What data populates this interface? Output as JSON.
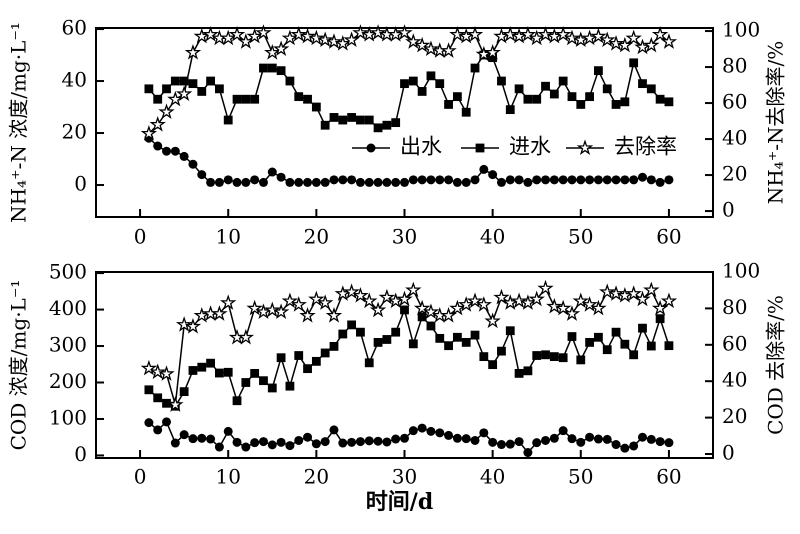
{
  "figure": {
    "background": "#ffffff",
    "foreground": "#000000",
    "x_axis_title": "时间/d",
    "legend": {
      "items": [
        {
          "label": "出水",
          "marker": "circle"
        },
        {
          "label": "进水",
          "marker": "square"
        },
        {
          "label": "去除率",
          "marker": "star"
        }
      ]
    }
  },
  "chart_data": [
    {
      "type": "line",
      "title": "",
      "xlabel": "",
      "x_ticks": [
        0,
        10,
        20,
        30,
        40,
        50,
        60
      ],
      "xlim": [
        -5,
        65
      ],
      "grid": false,
      "legend_visible": true,
      "legend_position": "inside-center-right",
      "left_axis": {
        "label": "NH₄⁺-N 浓度/mg·L⁻¹",
        "ticks": [
          0,
          20,
          40,
          60
        ],
        "lim": [
          -12.3,
          60.4
        ]
      },
      "right_axis": {
        "label": "NH₄⁺-N去除率/%",
        "ticks": [
          0,
          20,
          40,
          60,
          80,
          100
        ],
        "lim": [
          -3.3,
          101.7
        ]
      },
      "x": [
        1,
        2,
        3,
        4,
        5,
        6,
        7,
        8,
        9,
        10,
        11,
        12,
        13,
        14,
        15,
        16,
        17,
        18,
        19,
        20,
        21,
        22,
        23,
        24,
        25,
        26,
        27,
        28,
        29,
        30,
        31,
        32,
        33,
        34,
        35,
        36,
        37,
        38,
        39,
        40,
        41,
        42,
        43,
        44,
        45,
        46,
        47,
        48,
        49,
        50,
        51,
        52,
        53,
        54,
        55,
        56,
        57,
        58,
        59,
        60
      ],
      "series": [
        {
          "name": "出水",
          "marker": "circle",
          "axis": "left",
          "values": [
            18,
            15,
            13,
            13,
            11,
            8,
            4,
            1,
            1,
            2,
            1,
            1,
            2,
            1,
            5,
            3,
            1,
            1,
            1,
            1,
            1,
            2,
            2,
            2,
            1,
            1,
            1,
            1,
            1,
            1,
            2,
            2,
            2,
            2,
            2,
            1,
            1,
            2,
            6,
            4,
            1,
            2,
            2,
            1,
            2,
            2,
            2,
            2,
            2,
            2,
            2,
            2,
            2,
            2,
            2,
            2,
            3,
            2,
            1,
            2
          ]
        },
        {
          "name": "进水",
          "marker": "square",
          "axis": "left",
          "values": [
            37,
            33,
            37,
            40,
            40,
            39,
            36,
            40,
            37,
            25,
            33,
            33,
            33,
            45,
            45,
            44,
            40,
            34,
            33,
            30,
            23,
            26,
            25,
            26,
            25,
            25,
            22,
            23,
            24,
            39,
            40,
            36,
            42,
            39,
            31,
            34,
            28,
            45,
            50,
            49,
            40,
            29,
            37,
            33,
            33,
            38,
            35,
            40,
            34,
            31,
            34,
            44,
            37,
            31,
            32,
            47,
            39,
            37,
            33,
            32
          ]
        },
        {
          "name": "去除率",
          "marker": "star",
          "axis": "right",
          "values": [
            43,
            48,
            55,
            62,
            65,
            88,
            97,
            98,
            96,
            96,
            98,
            94,
            97,
            99,
            88,
            90,
            96,
            98,
            97,
            96,
            95,
            94,
            93,
            95,
            99,
            98,
            99,
            98,
            98,
            99,
            94,
            92,
            90,
            89,
            89,
            98,
            97,
            98,
            87,
            88,
            97,
            98,
            97,
            98,
            96,
            98,
            97,
            98,
            96,
            95,
            96,
            97,
            95,
            93,
            92,
            96,
            91,
            92,
            98,
            94
          ]
        }
      ]
    },
    {
      "type": "line",
      "title": "",
      "xlabel": "时间/d",
      "x_ticks": [
        0,
        10,
        20,
        30,
        40,
        50,
        60
      ],
      "xlim": [
        -5,
        65
      ],
      "grid": false,
      "legend_visible": false,
      "left_axis": {
        "label": "COD 浓度/mg·L⁻¹",
        "ticks": [
          0,
          100,
          200,
          300,
          400,
          500
        ],
        "lim": [
          -7,
          503
        ]
      },
      "right_axis": {
        "label": "COD 去除率/%",
        "ticks": [
          0,
          20,
          40,
          60,
          80,
          100
        ],
        "lim": [
          -2.2,
          100
        ]
      },
      "x": [
        1,
        2,
        3,
        4,
        5,
        6,
        7,
        8,
        9,
        10,
        11,
        12,
        13,
        14,
        15,
        16,
        17,
        18,
        19,
        20,
        21,
        22,
        23,
        24,
        25,
        26,
        27,
        28,
        29,
        30,
        31,
        32,
        33,
        34,
        35,
        36,
        37,
        38,
        39,
        40,
        41,
        42,
        43,
        44,
        45,
        46,
        47,
        48,
        49,
        50,
        51,
        52,
        53,
        54,
        55,
        56,
        57,
        58,
        59,
        60
      ],
      "series": [
        {
          "name": "出水",
          "marker": "circle",
          "axis": "left",
          "values": [
            90,
            70,
            92,
            34,
            57,
            46,
            47,
            45,
            23,
            66,
            36,
            23,
            35,
            38,
            29,
            36,
            27,
            41,
            50,
            32,
            38,
            70,
            34,
            36,
            38,
            40,
            39,
            37,
            45,
            47,
            68,
            75,
            66,
            62,
            55,
            47,
            46,
            41,
            62,
            36,
            30,
            31,
            38,
            8,
            35,
            41,
            47,
            68,
            46,
            36,
            50,
            45,
            44,
            30,
            20,
            26,
            50,
            44,
            38,
            35
          ]
        },
        {
          "name": "进水",
          "marker": "square",
          "axis": "left",
          "values": [
            180,
            158,
            143,
            135,
            175,
            233,
            242,
            253,
            226,
            228,
            150,
            200,
            225,
            205,
            185,
            268,
            190,
            274,
            238,
            258,
            281,
            299,
            333,
            358,
            338,
            254,
            310,
            318,
            338,
            399,
            306,
            380,
            355,
            321,
            301,
            324,
            310,
            330,
            271,
            249,
            286,
            342,
            225,
            232,
            274,
            276,
            271,
            268,
            326,
            262,
            310,
            324,
            290,
            338,
            305,
            276,
            349,
            300,
            375,
            301
          ]
        },
        {
          "name": "去除率",
          "marker": "star",
          "axis": "right",
          "values": [
            47,
            45,
            44,
            27,
            71,
            70,
            76,
            77,
            77,
            83,
            64,
            64,
            80,
            78,
            79,
            78,
            84,
            82,
            76,
            85,
            83,
            76,
            88,
            89,
            87,
            84,
            79,
            86,
            84,
            85,
            90,
            80,
            78,
            76,
            76,
            80,
            82,
            84,
            82,
            73,
            86,
            83,
            84,
            83,
            85,
            91,
            81,
            80,
            77,
            84,
            82,
            80,
            89,
            88,
            87,
            88,
            85,
            90,
            80,
            84
          ]
        }
      ]
    }
  ]
}
